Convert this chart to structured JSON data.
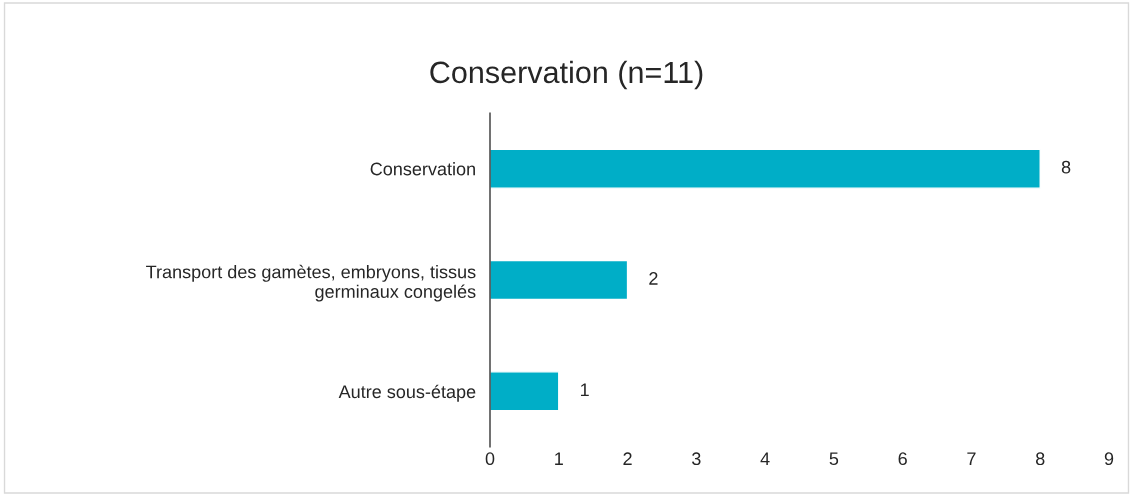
{
  "chart_data": {
    "type": "bar",
    "orientation": "horizontal",
    "title": "Conservation (n=11)",
    "categories": [
      "Conservation",
      "Transport des gamètes, embryons, tissus\ngerminaux congelés",
      "Autre sous-étape"
    ],
    "values": [
      8,
      2,
      1
    ],
    "color": "#00aec7",
    "xlim": [
      0,
      9
    ],
    "xticks": [
      0,
      1,
      2,
      3,
      4,
      5,
      6,
      7,
      8,
      9
    ],
    "grid": false,
    "data_labels": true
  }
}
